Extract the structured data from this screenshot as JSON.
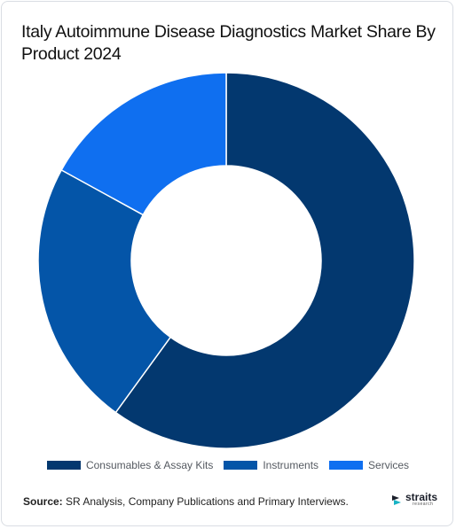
{
  "title": "Italy Autoimmune Disease Diagnostics Market Share By Product 2024",
  "chart_data": {
    "type": "pie",
    "variant": "donut",
    "title": "Italy Autoimmune Disease Diagnostics Market Share By Product 2024",
    "categories": [
      "Consumables & Assay Kits",
      "Instruments",
      "Services"
    ],
    "values": [
      60,
      23,
      17
    ],
    "colors": [
      "#03386f",
      "#0455a8",
      "#0f6ff0"
    ],
    "legend_position": "bottom"
  },
  "legend": {
    "items": [
      {
        "label": "Consumables & Assay Kits",
        "color": "#03386f"
      },
      {
        "label": "Instruments",
        "color": "#0455a8"
      },
      {
        "label": "Services",
        "color": "#0f6ff0"
      }
    ]
  },
  "footer": {
    "source_label": "Source:",
    "source_text": " SR Analysis, Company Publications and Primary Interviews."
  },
  "logo": {
    "name": "straits",
    "sub": "research"
  }
}
